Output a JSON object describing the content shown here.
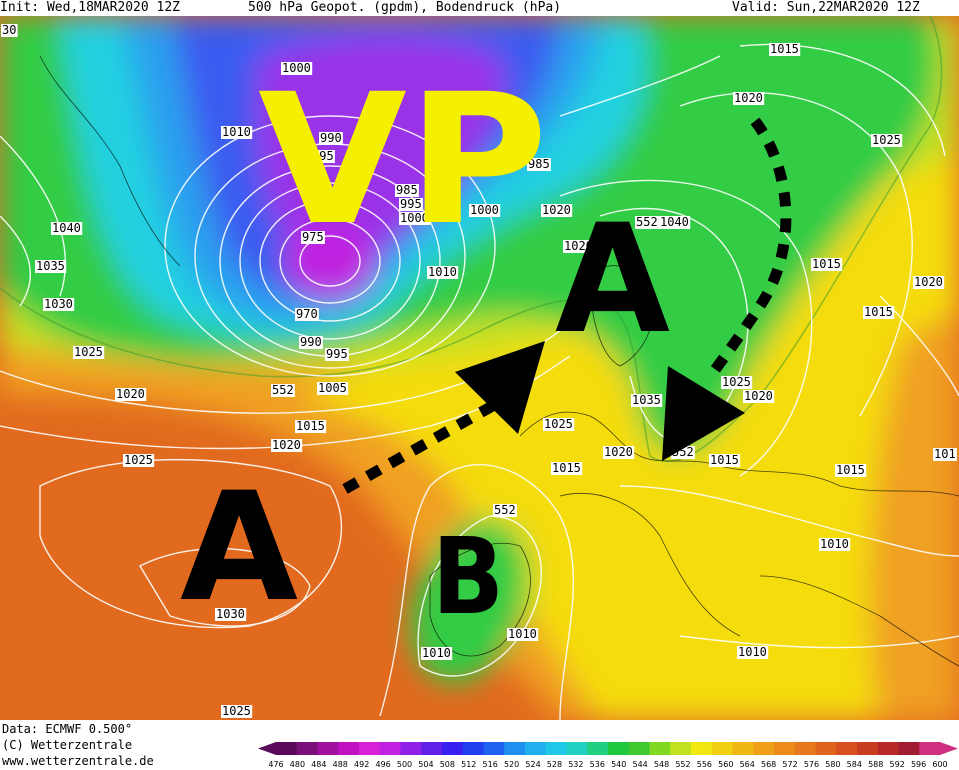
{
  "header": {
    "init": "Init: Wed,18MAR2020 12Z",
    "title": "500 hPa Geopot. (gpdm), Bodendruck (hPa)",
    "valid": "Valid: Sun,22MAR2020 12Z"
  },
  "annotations": {
    "vp": "VP",
    "high_west": "A",
    "high_north": "A",
    "low_iberia": "B"
  },
  "colors": {
    "vp_text": "#f5f000",
    "annotation_black": "#000000",
    "dark_purple": "#6a1ed8",
    "violet": "#9a32e8",
    "blue": "#3a5cf0",
    "cyan_blue": "#2aa0ee",
    "cyan": "#20d0e0",
    "green": "#33cc44",
    "yellow_green": "#c8e020",
    "yellow": "#f4dc10",
    "orange": "#f0a020",
    "dark_orange": "#e26a1e",
    "red_orange": "#d85020"
  },
  "isobar_labels": [
    "30",
    "1000",
    "1010",
    "1040",
    "1035",
    "1030",
    "1025",
    "1020",
    "990",
    "995",
    "975",
    "970",
    "985",
    "990",
    "995",
    "1005",
    "1000",
    "1010",
    "552",
    "1015",
    "1020",
    "985",
    "995",
    "1000",
    "1020",
    "552",
    "1040",
    "1020",
    "1025",
    "1015",
    "1020",
    "1015",
    "1025",
    "1020",
    "1035",
    "1025",
    "1015",
    "1020",
    "552",
    "1015",
    "1015",
    "101",
    "1025",
    "1020",
    "552",
    "1010",
    "1030",
    "1010",
    "1010",
    "1025",
    "1015",
    "1010"
  ],
  "footer": {
    "data": "Data: ECMWF  0.500°",
    "copyright": "(C) Wetterzentrale",
    "url": "www.wetterzentrale.de"
  },
  "legend": {
    "ticks": [
      "476",
      "480",
      "484",
      "488",
      "492",
      "496",
      "500",
      "504",
      "508",
      "512",
      "516",
      "520",
      "524",
      "528",
      "532",
      "536",
      "540",
      "544",
      "548",
      "552",
      "556",
      "560",
      "564",
      "568",
      "572",
      "576",
      "580",
      "584",
      "588",
      "592",
      "596",
      "600"
    ],
    "colors": [
      "#5a0a5a",
      "#7a107a",
      "#a010a0",
      "#c010c0",
      "#d820d8",
      "#c020e0",
      "#9020e8",
      "#6020e8",
      "#3a20f0",
      "#2040f0",
      "#2060f0",
      "#2090f0",
      "#20b0f0",
      "#20c8e8",
      "#20d0c0",
      "#20d080",
      "#20c840",
      "#40c830",
      "#80d820",
      "#c0e020",
      "#f0e810",
      "#f0d010",
      "#f0b814",
      "#f0a018",
      "#ee8c1a",
      "#e8781c",
      "#e0641e",
      "#d85020",
      "#c83c22",
      "#b82828",
      "#a01c30",
      "#d03080"
    ]
  }
}
